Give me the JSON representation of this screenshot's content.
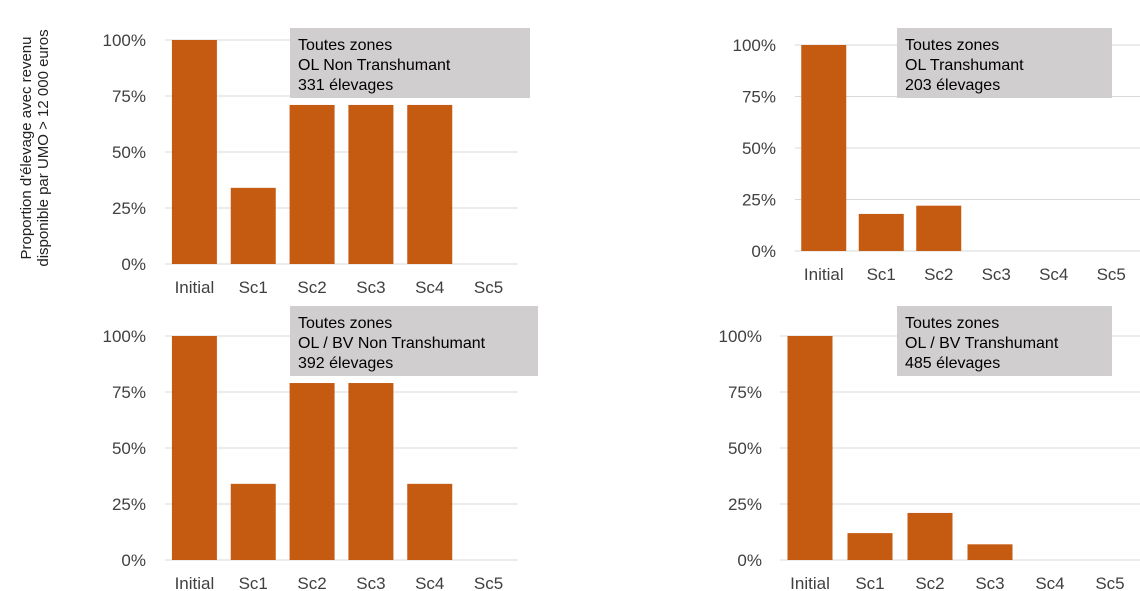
{
  "ylabel": {
    "line1": "Proportion d'élevage avec revenu",
    "line2": "disponible par UMO > 12 000 euros"
  },
  "colors": {
    "bar": "#c55a11",
    "grid": "#d9d9d9",
    "legend_box": "#d0cece",
    "tick_text": "#404040"
  },
  "chart_data": [
    {
      "type": "bar",
      "annotation": [
        "Toutes zones",
        "OL Non Transhumant",
        "331 élevages"
      ],
      "categories": [
        "Initial",
        "Sc1",
        "Sc2",
        "Sc3",
        "Sc4",
        "Sc5"
      ],
      "values": [
        100,
        34,
        71,
        71,
        71,
        0
      ],
      "yticks": [
        "0%",
        "25%",
        "50%",
        "75%",
        "100%"
      ],
      "ylim": [
        0,
        100
      ],
      "grid": true
    },
    {
      "type": "bar",
      "annotation": [
        "Toutes zones",
        "OL Transhumant",
        "203 élevages"
      ],
      "categories": [
        "Initial",
        "Sc1",
        "Sc2",
        "Sc3",
        "Sc4",
        "Sc5"
      ],
      "values": [
        100,
        18,
        22,
        0,
        0,
        0
      ],
      "yticks": [
        "0%",
        "25%",
        "50%",
        "75%",
        "100%"
      ],
      "ylim": [
        0,
        100
      ],
      "grid": true
    },
    {
      "type": "bar",
      "annotation": [
        "Toutes zones",
        "OL / BV Non Transhumant",
        "392 élevages"
      ],
      "categories": [
        "Initial",
        "Sc1",
        "Sc2",
        "Sc3",
        "Sc4",
        "Sc5"
      ],
      "values": [
        100,
        34,
        79,
        79,
        34,
        0
      ],
      "yticks": [
        "0%",
        "25%",
        "50%",
        "75%",
        "100%"
      ],
      "ylim": [
        0,
        100
      ],
      "grid": true
    },
    {
      "type": "bar",
      "annotation": [
        "Toutes zones",
        "OL / BV Transhumant",
        "485 élevages"
      ],
      "categories": [
        "Initial",
        "Sc1",
        "Sc2",
        "Sc3",
        "Sc4",
        "Sc5"
      ],
      "values": [
        100,
        12,
        21,
        7,
        0,
        0
      ],
      "yticks": [
        "0%",
        "25%",
        "50%",
        "75%",
        "100%"
      ],
      "ylim": [
        0,
        100
      ],
      "grid": true
    }
  ]
}
